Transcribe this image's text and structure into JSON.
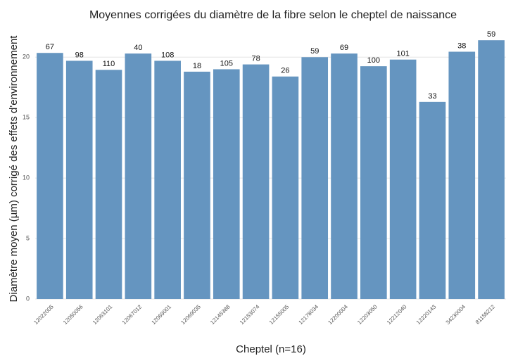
{
  "chart_data": {
    "type": "bar",
    "title": "Moyennes corrigées du diamètre de la fibre selon le cheptel de naissance",
    "x_label": "Cheptel (n=16)",
    "y_label": "Diamètre moyen (µm) corrigé des effets d'environnement",
    "categories": [
      "12022005",
      "12050056",
      "12063101",
      "12067012",
      "12069001",
      "12069035",
      "12145388",
      "12153074",
      "12155005",
      "12178034",
      "12200004",
      "12203050",
      "12212040",
      "12220143",
      "34230004",
      "81158212"
    ],
    "values": [
      20.35,
      19.7,
      18.95,
      20.3,
      19.7,
      18.8,
      19.0,
      19.4,
      18.4,
      20.0,
      20.3,
      19.25,
      19.8,
      16.3,
      20.45,
      21.4
    ],
    "bar_labels": [
      67,
      98,
      110,
      40,
      108,
      18,
      105,
      78,
      26,
      59,
      69,
      100,
      101,
      33,
      38,
      59
    ],
    "color": "#6595c0",
    "ylim": [
      0,
      22.4
    ],
    "yticks": [
      0,
      5,
      10,
      15,
      20
    ],
    "grid": true
  }
}
